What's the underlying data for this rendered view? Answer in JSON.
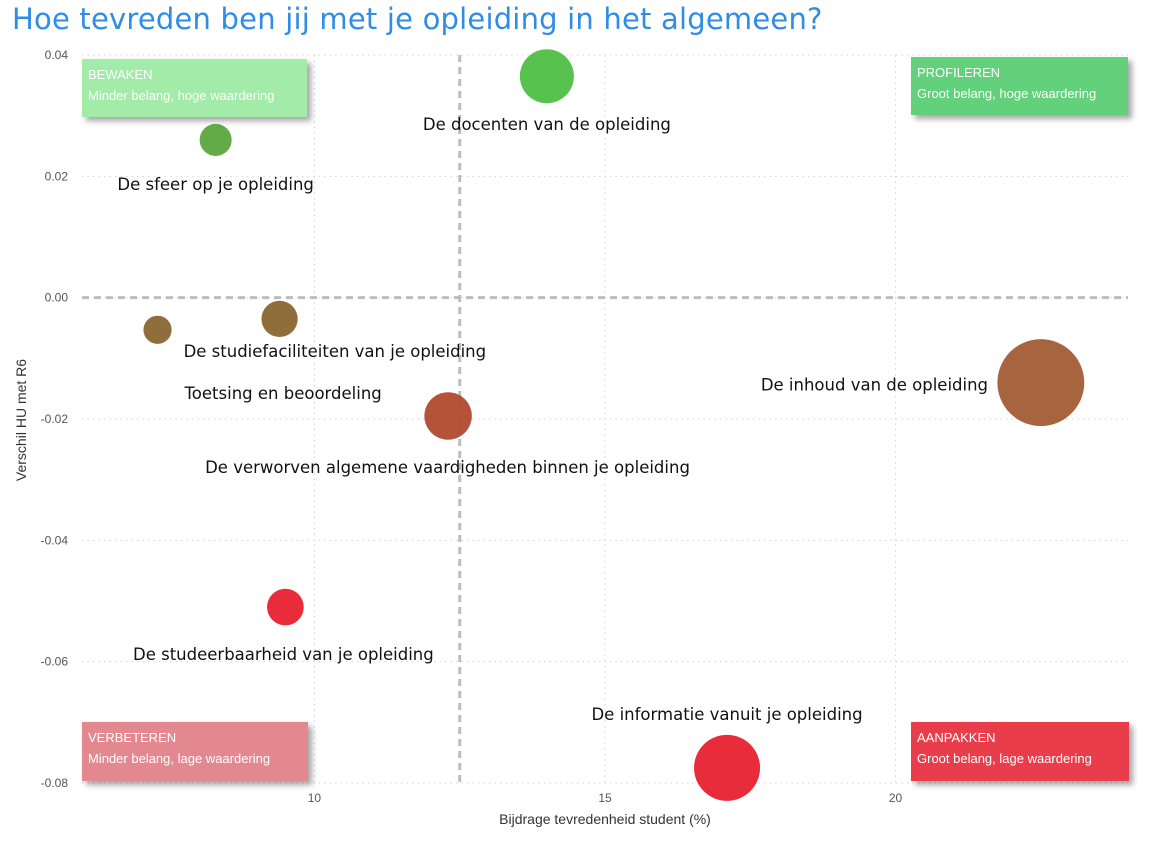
{
  "title": "Hoe tevreden ben jij met je opleiding in het algemeen?",
  "chart_data": {
    "type": "scatter",
    "xlabel": "Bijdrage tevredenheid student (%)",
    "ylabel": "Verschil HU met R6",
    "xlim": [
      6,
      24
    ],
    "ylim": [
      -0.08,
      0.04
    ],
    "x_ticks": [
      10,
      15,
      20
    ],
    "x_tick_labels": [
      "10",
      "15",
      "20"
    ],
    "y_ticks": [
      0.04,
      0.02,
      0.0,
      -0.02,
      -0.04,
      -0.06,
      -0.08
    ],
    "y_tick_labels": [
      "0.04",
      "0.02",
      "0.00",
      "-0.02",
      "-0.04",
      "-0.06",
      "-0.08"
    ],
    "grid": true,
    "reference_lines": {
      "x": 12.5,
      "y": 0.0
    },
    "points": [
      {
        "label": "De docenten van de opleiding",
        "x": 14.0,
        "y": 0.0365,
        "size": 14.0,
        "color": "#4fbf45"
      },
      {
        "label": "De sfeer op je opleiding",
        "x": 8.3,
        "y": 0.026,
        "size": 8.3,
        "color": "#5aa63c"
      },
      {
        "label": "De studiefaciliteiten van je opleiding",
        "x": 9.4,
        "y": -0.0035,
        "size": 9.4,
        "color": "#8a6630"
      },
      {
        "label": "Toetsing en beoordeling",
        "x": 7.3,
        "y": -0.0053,
        "size": 7.3,
        "color": "#8a6630"
      },
      {
        "label": "De inhoud van de opleiding",
        "x": 22.5,
        "y": -0.014,
        "size": 22.5,
        "color": "#a25c34"
      },
      {
        "label": "De verworven algemene vaardigheden binnen je opleiding",
        "x": 12.3,
        "y": -0.0195,
        "size": 12.3,
        "color": "#b04a2e"
      },
      {
        "label": "De studeerbaarheid van je opleiding",
        "x": 9.5,
        "y": -0.051,
        "size": 9.5,
        "color": "#e8212f"
      },
      {
        "label": "De informatie vanuit je opleiding",
        "x": 17.1,
        "y": -0.0775,
        "size": 17.1,
        "color": "#e8212f"
      }
    ],
    "quadrants": [
      {
        "title": "BEWAKEN",
        "desc": "Minder belang, hoge waardering",
        "color": "#a3eba8",
        "position": "top-left"
      },
      {
        "title": "PROFILEREN",
        "desc": "Groot belang, hoge waardering",
        "color": "#63d17c",
        "position": "top-right"
      },
      {
        "title": "VERBETEREN",
        "desc": "Minder belang, lage waardering",
        "color": "#e3888f",
        "position": "bottom-left"
      },
      {
        "title": "AANPAKKEN",
        "desc": "Groot belang, lage waardering",
        "color": "#ea3e4b",
        "position": "bottom-right"
      }
    ]
  }
}
